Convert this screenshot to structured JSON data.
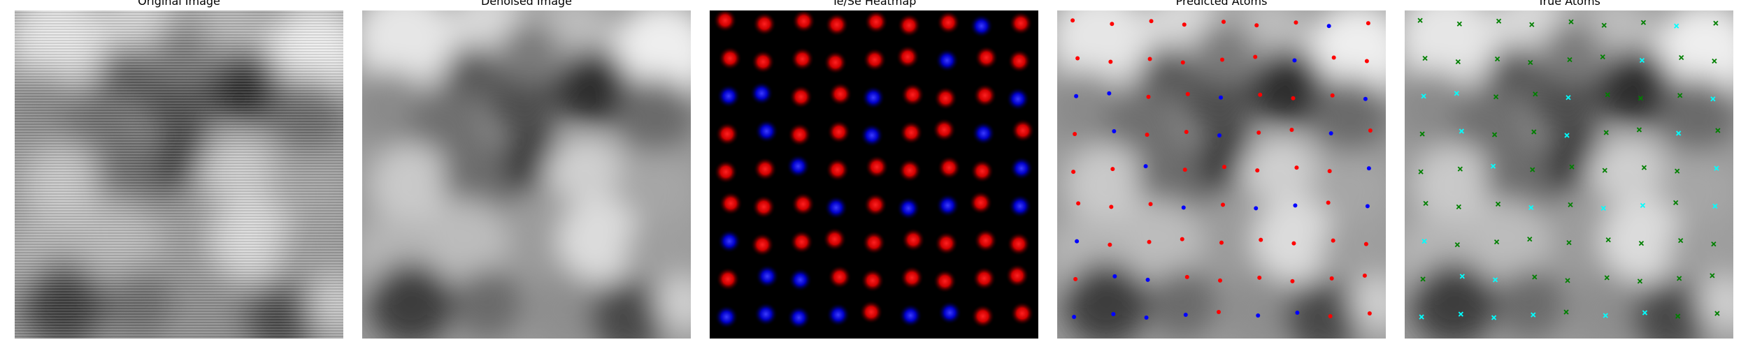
{
  "panels": [
    {
      "title": "Original Image"
    },
    {
      "title": "Denoised Image"
    },
    {
      "title": "Te/Se Heatmap"
    },
    {
      "title": "Predicted Atoms"
    },
    {
      "title": "True Atoms"
    }
  ],
  "colors": {
    "te": "#ff0000",
    "se": "#0000ff",
    "true_te": "#00ffff",
    "true_se": "#008000",
    "heatmap_bg": "#000000"
  },
  "lattice": {
    "rows": 9,
    "cols": 9,
    "heatmap_species": [
      [
        "Te",
        "Te",
        "Te",
        "Te",
        "Te",
        "Te",
        "Te",
        "Se",
        "Te"
      ],
      [
        "Te",
        "Te",
        "Te",
        "Te",
        "Te",
        "Te",
        "Se",
        "Te",
        "Te"
      ],
      [
        "Se",
        "Se",
        "Te",
        "Te",
        "Se",
        "Te",
        "Te",
        "Te",
        "Se"
      ],
      [
        "Te",
        "Se",
        "Te",
        "Te",
        "Se",
        "Te",
        "Te",
        "Se",
        "Te"
      ],
      [
        "Te",
        "Te",
        "Se",
        "Te",
        "Te",
        "Te",
        "Te",
        "Te",
        "Se"
      ],
      [
        "Te",
        "Te",
        "Te",
        "Se",
        "Te",
        "Se",
        "Se",
        "Te",
        "Se"
      ],
      [
        "Se",
        "Te",
        "Te",
        "Te",
        "Te",
        "Te",
        "Te",
        "Te",
        "Te"
      ],
      [
        "Te",
        "Se",
        "Se",
        "Te",
        "Te",
        "Te",
        "Te",
        "Te",
        "Te"
      ],
      [
        "Se",
        "Se",
        "Se",
        "Se",
        "Te",
        "Se",
        "Se",
        "Te",
        "Te"
      ]
    ]
  }
}
